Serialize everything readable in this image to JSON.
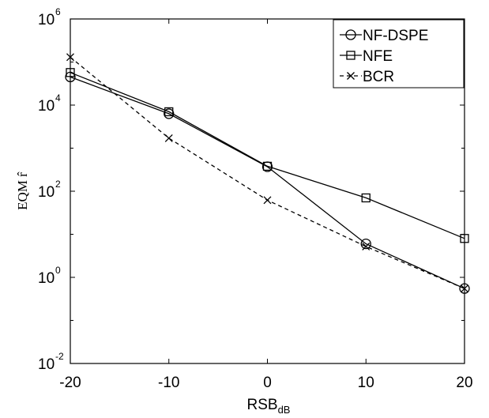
{
  "chart_data": {
    "type": "line",
    "xlabel": "RSB",
    "xlabel_sub": "dB",
    "ylabel": "EQM r̂",
    "x": [
      -20,
      -10,
      0,
      10,
      20
    ],
    "xlim": [
      -20,
      20
    ],
    "ylim": [
      0.01,
      1000000
    ],
    "yscale": "log",
    "xticks": [
      "-20",
      "-10",
      "0",
      "10",
      "20"
    ],
    "yticks": [
      {
        "base": "10",
        "exp": "-2"
      },
      {
        "base": "10",
        "exp": "0"
      },
      {
        "base": "10",
        "exp": "2"
      },
      {
        "base": "10",
        "exp": "4"
      },
      {
        "base": "10",
        "exp": "6"
      }
    ],
    "grid": false,
    "legend_position": "top-right",
    "series": [
      {
        "name": "NF-DSPE",
        "marker": "circle",
        "dash": "solid",
        "color": "#000000",
        "values": [
          45000,
          6300,
          370,
          6,
          0.55
        ]
      },
      {
        "name": "NFE",
        "marker": "square",
        "dash": "solid",
        "color": "#000000",
        "values": [
          57000,
          7000,
          380,
          70,
          8
        ]
      },
      {
        "name": "BCR",
        "marker": "x",
        "dash": "dashed",
        "color": "#000000",
        "values": [
          130000,
          1700,
          62,
          5.2,
          0.55
        ]
      }
    ]
  }
}
